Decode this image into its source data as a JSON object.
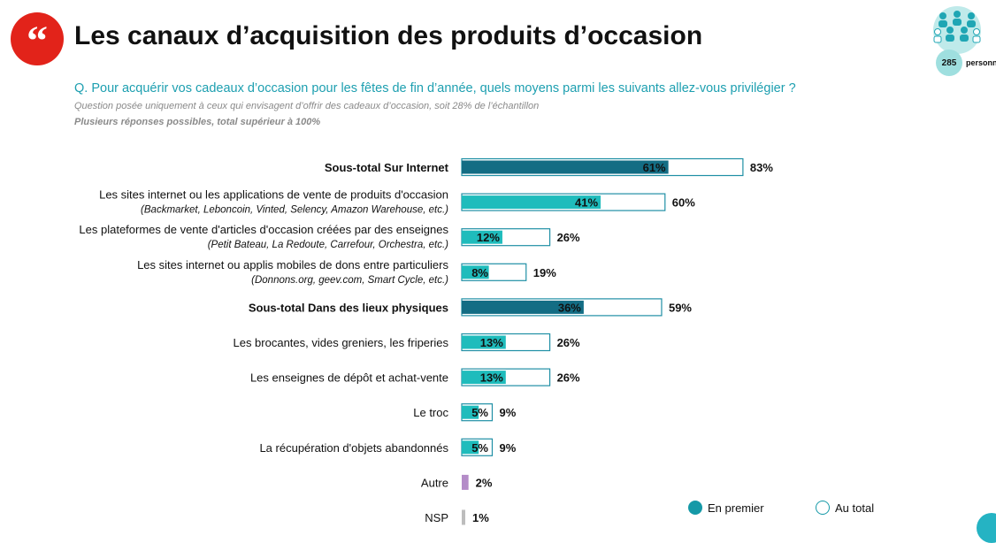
{
  "header": {
    "title": "Les canaux d’acquisition des produits d’occasion",
    "quote_icon": "quote-icon",
    "sample_icon": "people-group-icon",
    "sample_count": "285",
    "sample_label": "personnes"
  },
  "question": "Q. Pour acquérir vos cadeaux d’occasion pour les fêtes de fin d’année, quels moyens parmi les suivants allez-vous privilégier ?",
  "note": "Question posée uniquement à ceux qui envisagent d’offrir des cadeaux d’occasion, soit 28% de l’échantillon",
  "note2": "Plusieurs réponses possibles, total supérieur à 100%",
  "legend": {
    "first": "En premier",
    "total": "Au total"
  },
  "colors": {
    "subtotal": "#136d84",
    "item": "#1fbcbc",
    "other": "#b48cc8",
    "nsp": "#bdbdbd",
    "outline": "#1f8fa5"
  },
  "chart_data": {
    "type": "bar",
    "orientation": "horizontal",
    "series": [
      {
        "name": "En premier",
        "values": [
          61,
          41,
          12,
          8,
          36,
          13,
          13,
          5,
          5,
          null,
          null
        ]
      },
      {
        "name": "Au total",
        "values": [
          83,
          60,
          26,
          19,
          59,
          26,
          26,
          9,
          9,
          2,
          1
        ]
      }
    ],
    "categories": [
      {
        "label": "Sous-total Sur Internet",
        "sub": "",
        "kind": "subtotal",
        "first": 61,
        "total": 83,
        "first_label": "61%",
        "total_label": "83%"
      },
      {
        "label": "Les sites internet ou les applications de vente de produits d'occasion",
        "sub": "(Backmarket, Leboncoin, Vinted, Selency, Amazon Warehouse, etc.)",
        "kind": "item",
        "first": 41,
        "total": 60,
        "first_label": "41%",
        "total_label": "60%"
      },
      {
        "label": "Les plateformes de vente d'articles d'occasion créées par des enseignes",
        "sub": "(Petit Bateau, La Redoute, Carrefour, Orchestra, etc.)",
        "kind": "item",
        "first": 12,
        "total": 26,
        "first_label": "12%",
        "total_label": "26%"
      },
      {
        "label": "Les sites internet ou applis mobiles de dons entre particuliers",
        "sub": "(Donnons.org, geev.com, Smart Cycle, etc.)",
        "kind": "item",
        "first": 8,
        "total": 19,
        "first_label": "8%",
        "total_label": "19%"
      },
      {
        "label": "Sous-total Dans des lieux physiques",
        "sub": "",
        "kind": "subtotal",
        "first": 36,
        "total": 59,
        "first_label": "36%",
        "total_label": "59%"
      },
      {
        "label": "Les brocantes, vides greniers, les friperies",
        "sub": "",
        "kind": "item",
        "first": 13,
        "total": 26,
        "first_label": "13%",
        "total_label": "26%"
      },
      {
        "label": "Les enseignes de dépôt et achat-vente",
        "sub": "",
        "kind": "item",
        "first": 13,
        "total": 26,
        "first_label": "13%",
        "total_label": "26%"
      },
      {
        "label": "Le troc",
        "sub": "",
        "kind": "item",
        "first": 5,
        "total": 9,
        "first_label": "5%",
        "total_label": "9%"
      },
      {
        "label": "La récupération d'objets abandonnés",
        "sub": "",
        "kind": "item",
        "first": 5,
        "total": 9,
        "first_label": "5%",
        "total_label": "9%"
      },
      {
        "label": "Autre",
        "sub": "",
        "kind": "other",
        "first": null,
        "total": 2,
        "first_label": "",
        "total_label": "2%"
      },
      {
        "label": "NSP",
        "sub": "",
        "kind": "nsp",
        "first": null,
        "total": 1,
        "first_label": "",
        "total_label": "1%"
      }
    ],
    "xlim": [
      0,
      100
    ],
    "grid": false,
    "legend_position": "bottom-right"
  }
}
